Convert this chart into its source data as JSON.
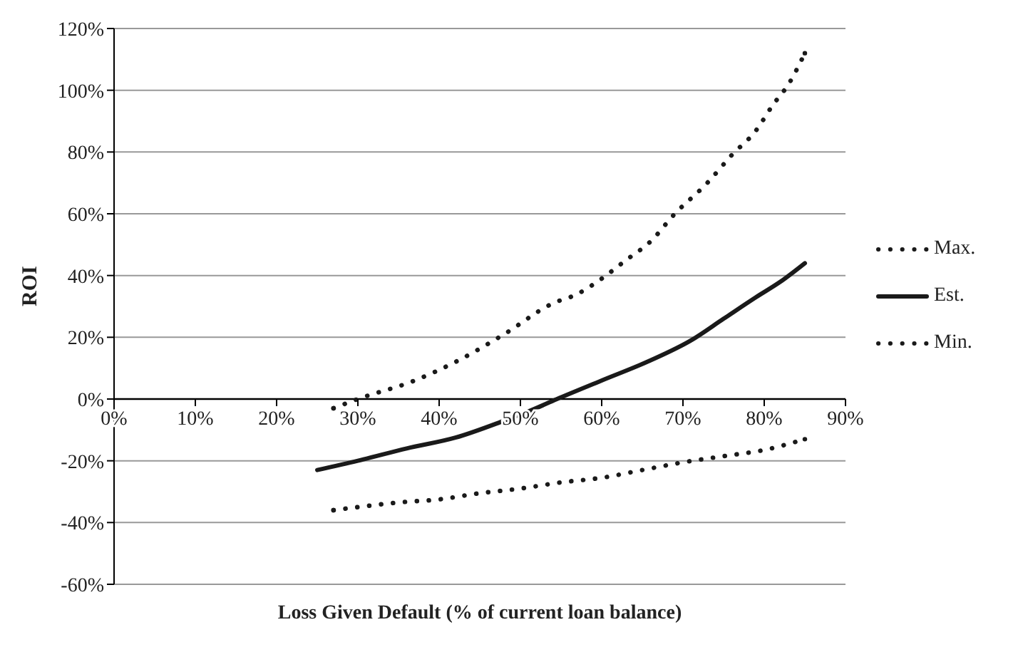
{
  "chart_data": {
    "type": "line",
    "xlabel": "Loss Given Default (% of current loan balance)",
    "ylabel": "ROI",
    "xlim": [
      0,
      90
    ],
    "ylim": [
      -60,
      120
    ],
    "xticks": [
      {
        "value": 0,
        "label": "0%"
      },
      {
        "value": 10,
        "label": "10%"
      },
      {
        "value": 20,
        "label": "20%"
      },
      {
        "value": 30,
        "label": "30%"
      },
      {
        "value": 40,
        "label": "40%"
      },
      {
        "value": 50,
        "label": "50%"
      },
      {
        "value": 60,
        "label": "60%"
      },
      {
        "value": 70,
        "label": "70%"
      },
      {
        "value": 80,
        "label": "80%"
      },
      {
        "value": 90,
        "label": "90%"
      }
    ],
    "yticks": [
      {
        "value": -60,
        "label": "-60%"
      },
      {
        "value": -40,
        "label": "-40%"
      },
      {
        "value": -20,
        "label": "-20%"
      },
      {
        "value": 0,
        "label": "0%"
      },
      {
        "value": 20,
        "label": "20%"
      },
      {
        "value": 40,
        "label": "40%"
      },
      {
        "value": 60,
        "label": "60%"
      },
      {
        "value": 80,
        "label": "80%"
      },
      {
        "value": 100,
        "label": "100%"
      },
      {
        "value": 120,
        "label": "120%"
      }
    ],
    "grid": "y",
    "legend": "right",
    "marker": "none",
    "series": [
      {
        "name": "Max.",
        "color": "#1a1a1a",
        "line_style": "dotted",
        "x": [
          27,
          30,
          37,
          42,
          48,
          54,
          57,
          60,
          63,
          66,
          69,
          73,
          76,
          79,
          81,
          83,
          85
        ],
        "values": [
          -3,
          0,
          6,
          12,
          21,
          31,
          34,
          39,
          45,
          51,
          60,
          70,
          79,
          87,
          95,
          102,
          112
        ]
      },
      {
        "name": "Est.",
        "color": "#1a1a1a",
        "line_style": "solid",
        "x": [
          25,
          30,
          36,
          42,
          48,
          51,
          54.5,
          60,
          66,
          71,
          75,
          79,
          82,
          85
        ],
        "values": [
          -23,
          -20,
          -16,
          -12.5,
          -7,
          -4,
          0,
          6,
          12.5,
          19,
          26,
          33,
          38,
          44
        ]
      },
      {
        "name": "Min.",
        "color": "#1a1a1a",
        "line_style": "dotted",
        "x": [
          27,
          30,
          35,
          40,
          45,
          50,
          55,
          60,
          65,
          70,
          75,
          80,
          85
        ],
        "values": [
          -36,
          -35,
          -33.5,
          -32.5,
          -30.5,
          -29,
          -27,
          -25.5,
          -23,
          -20.5,
          -18.5,
          -16.5,
          -13
        ]
      }
    ]
  }
}
